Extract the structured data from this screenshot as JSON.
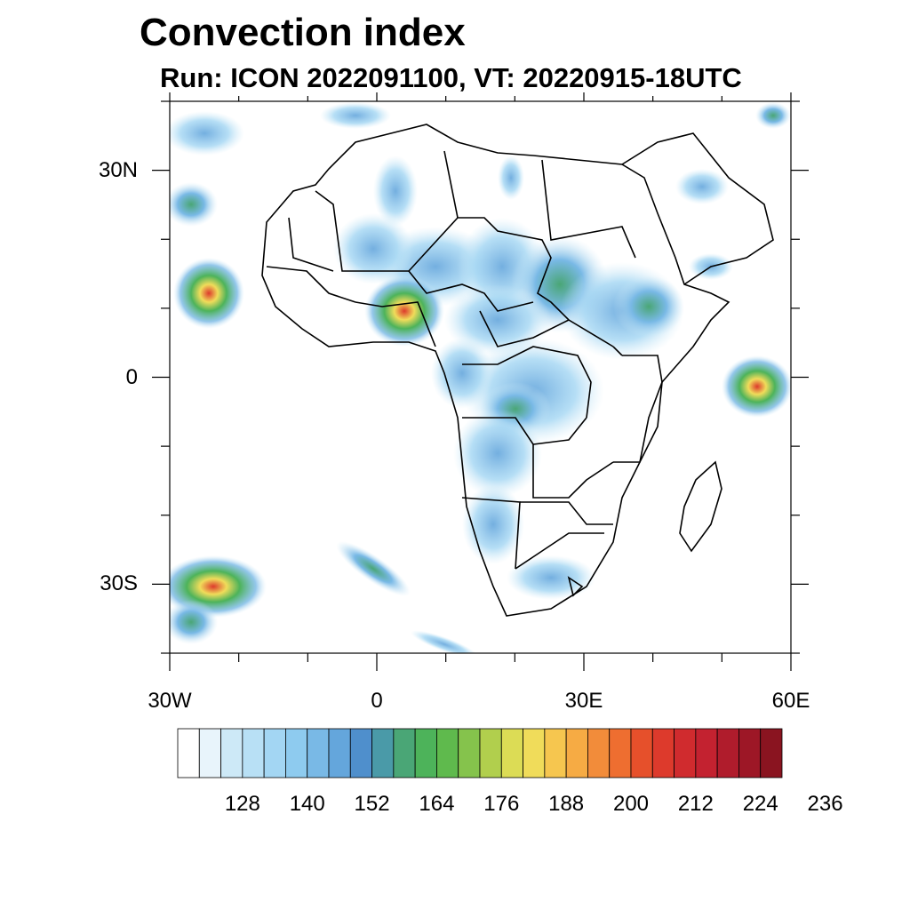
{
  "header": {
    "title": "Convection index",
    "subtitle": "Run: ICON 2022091100,  VT: 20220915-18UTC"
  },
  "map": {
    "region": "Africa",
    "lat_ticks": [
      {
        "label": "30N",
        "lat": 30
      },
      {
        "label": "0",
        "lat": 0
      },
      {
        "label": "30S",
        "lat": -30
      }
    ],
    "lon_ticks": [
      {
        "label": "30W",
        "lon": -30
      },
      {
        "label": "0",
        "lon": 0
      },
      {
        "label": "30E",
        "lon": 30
      },
      {
        "label": "60E",
        "lon": 60
      }
    ],
    "extent": {
      "lon_min": -30,
      "lon_max": 60,
      "lat_min": -40,
      "lat_max": 40
    }
  },
  "colorbar": {
    "labels": [
      "128",
      "140",
      "152",
      "164",
      "176",
      "188",
      "200",
      "212",
      "224",
      "236"
    ],
    "colors": [
      "#ffffff",
      "#e8f4fb",
      "#cde9f7",
      "#b8e0f5",
      "#a3d6f3",
      "#8ecbef",
      "#79b9e6",
      "#64a6dc",
      "#4f8fcc",
      "#4a9aa8",
      "#4aa676",
      "#4db35a",
      "#5fba4d",
      "#85c34c",
      "#b1cf4d",
      "#dcdc55",
      "#f0dc5a",
      "#f6c64f",
      "#f6ab44",
      "#f28c3a",
      "#ee6e30",
      "#e6502b",
      "#dd3a2c",
      "#d02b2e",
      "#c32230",
      "#b01c2c",
      "#9d1726",
      "#8a1420"
    ]
  }
}
